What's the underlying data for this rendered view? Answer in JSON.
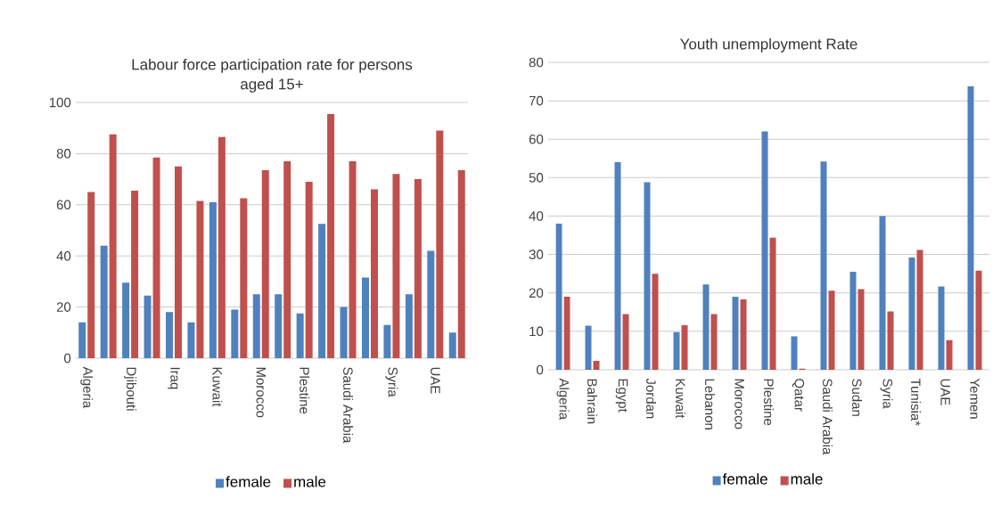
{
  "chart_data": [
    {
      "type": "bar",
      "title": "Labour force participation rate for persons aged 15+",
      "categories": [
        "Algeria",
        null,
        "Djibouti",
        null,
        "Iraq",
        null,
        "Kuwait",
        null,
        "Morocco",
        null,
        "Plestine",
        null,
        "Saudi Arabia",
        null,
        "Syria",
        null,
        "UAE",
        null
      ],
      "series": [
        {
          "name": "female",
          "color": "#4f81bd",
          "values": [
            14,
            44,
            29.5,
            24.5,
            18,
            14,
            61,
            19,
            25,
            25,
            17.5,
            52.5,
            20,
            31.5,
            13,
            25,
            42,
            10
          ]
        },
        {
          "name": "male",
          "color": "#c0504d",
          "values": [
            65,
            87.5,
            65.5,
            78.5,
            75,
            61.5,
            86.5,
            62.5,
            73.5,
            77,
            69,
            95.5,
            77,
            66,
            72,
            70,
            89,
            73.5
          ]
        }
      ],
      "ylim": [
        0,
        100
      ],
      "yticks": [
        0,
        20,
        40,
        60,
        80,
        100
      ],
      "grid": "y",
      "legend": "bottom"
    },
    {
      "type": "bar",
      "title": "Youth unemployment Rate",
      "categories": [
        "Algeria",
        "Bahrain",
        "Egypt",
        "Jordan",
        "Kuwait",
        "Lebanon",
        "Morocco",
        "Plestine",
        "Qatar",
        "Saudi Arabia",
        "Sudan",
        "Syria",
        "Tunisia*",
        "UAE",
        "Yemen"
      ],
      "series": [
        {
          "name": "female",
          "color": "#4f81bd",
          "values": [
            38,
            11.5,
            54,
            48.8,
            9.8,
            22.2,
            19,
            62,
            8.7,
            54.2,
            25.5,
            40,
            29.2,
            21.7,
            73.8
          ]
        },
        {
          "name": "male",
          "color": "#c0504d",
          "values": [
            19,
            2.3,
            14.5,
            25,
            11.6,
            14.5,
            18.3,
            34.4,
            0.3,
            20.6,
            21,
            15.2,
            31.2,
            7.7,
            25.8
          ]
        }
      ],
      "ylim": [
        0,
        80
      ],
      "yticks": [
        0,
        10,
        20,
        30,
        40,
        50,
        60,
        70,
        80
      ],
      "grid": "y",
      "legend": "bottom"
    }
  ]
}
